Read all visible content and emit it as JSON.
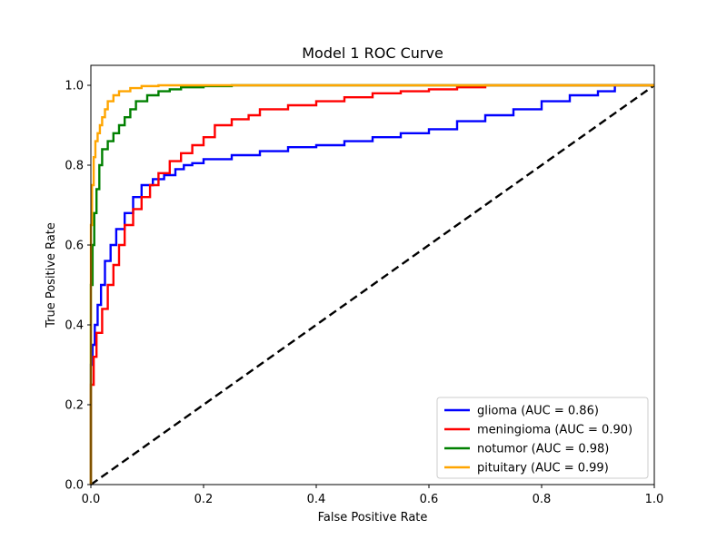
{
  "chart_data": {
    "type": "line",
    "title": "Model 1 ROC Curve",
    "xlabel": "False Positive Rate",
    "ylabel": "True Positive Rate",
    "xlim": [
      0.0,
      1.0
    ],
    "ylim": [
      0.0,
      1.05
    ],
    "x_ticks": [
      "0.0",
      "0.2",
      "0.4",
      "0.6",
      "0.8",
      "1.0"
    ],
    "y_ticks": [
      "0.0",
      "0.2",
      "0.4",
      "0.6",
      "0.8",
      "1.0"
    ],
    "grid": false,
    "legend_position": "bottom-right",
    "diagonal": {
      "x": [
        0,
        1
      ],
      "y": [
        0,
        1
      ],
      "color": "#000000",
      "style": "dashed"
    },
    "series": [
      {
        "name": "glioma (AUC = 0.86)",
        "color": "#0000ff",
        "x": [
          0,
          0,
          0.003,
          0.007,
          0.012,
          0.018,
          0.025,
          0.035,
          0.045,
          0.06,
          0.075,
          0.09,
          0.11,
          0.13,
          0.15,
          0.165,
          0.18,
          0.2,
          0.25,
          0.3,
          0.35,
          0.4,
          0.45,
          0.5,
          0.55,
          0.6,
          0.65,
          0.7,
          0.75,
          0.8,
          0.85,
          0.9,
          0.93,
          0.94
        ],
        "y": [
          0,
          0.25,
          0.3,
          0.35,
          0.4,
          0.45,
          0.5,
          0.56,
          0.6,
          0.64,
          0.68,
          0.72,
          0.75,
          0.765,
          0.775,
          0.79,
          0.8,
          0.805,
          0.815,
          0.825,
          0.835,
          0.845,
          0.85,
          0.86,
          0.87,
          0.88,
          0.89,
          0.91,
          0.925,
          0.94,
          0.96,
          0.975,
          0.985,
          1.0
        ]
      },
      {
        "name": "meningioma (AUC = 0.90)",
        "color": "#ff0000",
        "x": [
          0,
          0,
          0.005,
          0.01,
          0.02,
          0.03,
          0.04,
          0.05,
          0.06,
          0.075,
          0.09,
          0.105,
          0.12,
          0.14,
          0.16,
          0.18,
          0.2,
          0.22,
          0.25,
          0.28,
          0.3,
          0.35,
          0.4,
          0.45,
          0.5,
          0.55,
          0.6,
          0.65,
          0.7,
          0.75
        ],
        "y": [
          0,
          0.17,
          0.25,
          0.32,
          0.38,
          0.44,
          0.5,
          0.55,
          0.6,
          0.65,
          0.69,
          0.72,
          0.75,
          0.78,
          0.81,
          0.83,
          0.85,
          0.87,
          0.9,
          0.915,
          0.925,
          0.94,
          0.95,
          0.96,
          0.97,
          0.98,
          0.985,
          0.99,
          0.995,
          1.0
        ]
      },
      {
        "name": "notumor (AUC = 0.98)",
        "color": "#008000",
        "x": [
          0,
          0,
          0.003,
          0.006,
          0.01,
          0.015,
          0.02,
          0.03,
          0.04,
          0.05,
          0.06,
          0.07,
          0.08,
          0.1,
          0.12,
          0.14,
          0.16,
          0.2,
          0.25,
          0.3
        ],
        "y": [
          0,
          0.35,
          0.5,
          0.6,
          0.68,
          0.74,
          0.8,
          0.84,
          0.86,
          0.88,
          0.9,
          0.92,
          0.94,
          0.96,
          0.975,
          0.985,
          0.99,
          0.995,
          0.998,
          1.0
        ]
      },
      {
        "name": "pituitary (AUC = 0.99)",
        "color": "#ffa500",
        "x": [
          0,
          0,
          0.002,
          0.005,
          0.008,
          0.012,
          0.016,
          0.02,
          0.025,
          0.03,
          0.04,
          0.05,
          0.07,
          0.09,
          0.12,
          0.15
        ],
        "y": [
          0,
          0.5,
          0.65,
          0.75,
          0.82,
          0.86,
          0.88,
          0.9,
          0.92,
          0.94,
          0.96,
          0.975,
          0.985,
          0.993,
          0.998,
          1.0
        ]
      }
    ]
  }
}
